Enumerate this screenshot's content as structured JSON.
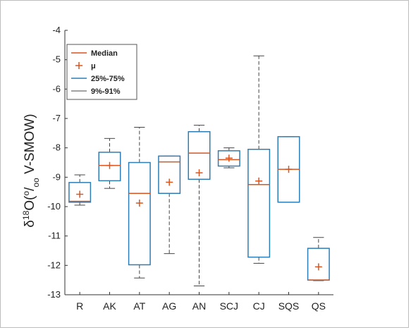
{
  "chart_data": {
    "type": "boxplot",
    "title": "",
    "ylabel": {
      "prefix": "δ",
      "sup1": "18",
      "mid": "O(",
      "sup2": "o",
      "slash": "/",
      "sub": "oo",
      "suffix": " V-SMOW)"
    },
    "ylim": [
      -13,
      -4
    ],
    "yticks": [
      -13,
      -12,
      -11,
      -10,
      -9,
      -8,
      -7,
      -6,
      -5,
      -4
    ],
    "categories": [
      "R",
      "AK",
      "AT",
      "AG",
      "AN",
      "SCJ",
      "CJ",
      "SQS",
      "QS"
    ],
    "series": [
      {
        "category": "R",
        "whisker_low": -9.95,
        "q1": -9.85,
        "median": -9.82,
        "q3": -9.18,
        "whisker_high": -8.92,
        "mean": -9.58
      },
      {
        "category": "AK",
        "whisker_low": -9.38,
        "q1": -9.12,
        "median": -8.6,
        "q3": -8.15,
        "whisker_high": -7.68,
        "mean": -8.6
      },
      {
        "category": "AT",
        "whisker_low": -12.43,
        "q1": -11.98,
        "median": -9.55,
        "q3": -8.5,
        "whisker_high": -7.3,
        "mean": -9.88
      },
      {
        "category": "AG",
        "whisker_low": -11.6,
        "q1": -9.55,
        "median": -8.48,
        "q3": -8.28,
        "whisker_high": -8.28,
        "mean": -9.17
      },
      {
        "category": "AN",
        "whisker_low": -12.7,
        "q1": -9.07,
        "median": -8.18,
        "q3": -7.45,
        "whisker_high": -7.23,
        "mean": -8.85
      },
      {
        "category": "SCJ",
        "whisker_low": -8.68,
        "q1": -8.62,
        "median": -8.4,
        "q3": -8.1,
        "whisker_high": -8.0,
        "mean": -8.35
      },
      {
        "category": "CJ",
        "whisker_low": -11.93,
        "q1": -11.72,
        "median": -9.25,
        "q3": -8.05,
        "whisker_high": -4.87,
        "mean": -9.13
      },
      {
        "category": "SQS",
        "whisker_low": -9.85,
        "q1": -9.85,
        "median": -8.73,
        "q3": -7.62,
        "whisker_high": -7.62,
        "mean": -8.73
      },
      {
        "category": "QS",
        "whisker_low": -12.52,
        "q1": -12.5,
        "median": -12.5,
        "q3": -11.42,
        "whisker_high": -11.05,
        "mean": -12.05
      }
    ],
    "legend": {
      "placement": "top-left",
      "entries": [
        {
          "label": "Median",
          "kind": "median"
        },
        {
          "label": "μ",
          "kind": "mean"
        },
        {
          "label": "25%-75%",
          "kind": "box"
        },
        {
          "label": "9%-91%",
          "kind": "whisker"
        }
      ]
    },
    "colors": {
      "box": "#2e7db5",
      "median": "#d9541e",
      "mean": "#d9541e",
      "whisker": "#444444",
      "axis": "#333333"
    },
    "grid": false
  }
}
